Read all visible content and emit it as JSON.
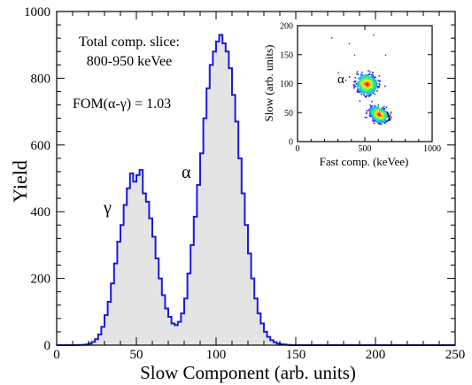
{
  "chart_data": [
    {
      "type": "histogram",
      "xlabel": "Slow Component (arb. units)",
      "ylabel": "Yield",
      "xlim": [
        0,
        250
      ],
      "ylim": [
        0,
        1000
      ],
      "xticks": [
        0,
        50,
        100,
        150,
        200,
        250
      ],
      "yticks": [
        0,
        200,
        400,
        600,
        800,
        1000
      ],
      "xtick_labels": [
        "0",
        "50",
        "100",
        "150",
        "200",
        "250"
      ],
      "ytick_labels": [
        "0",
        "200",
        "400",
        "600",
        "800",
        "1000"
      ],
      "bin_width": 2,
      "fill_color": "#e4e4e4",
      "line_color": "#1a1adf",
      "annotations": {
        "slice_line1": "Total comp. slice:",
        "slice_line2": "800-950 keVee",
        "fom": "FOM(α-γ) = 1.03",
        "gamma_peak": "γ",
        "alpha_peak": "α"
      },
      "bins": [
        {
          "x": 0,
          "y": 0
        },
        {
          "x": 10,
          "y": 0
        },
        {
          "x": 16,
          "y": 1
        },
        {
          "x": 18,
          "y": 2
        },
        {
          "x": 20,
          "y": 5
        },
        {
          "x": 22,
          "y": 10
        },
        {
          "x": 24,
          "y": 18
        },
        {
          "x": 26,
          "y": 32
        },
        {
          "x": 28,
          "y": 55
        },
        {
          "x": 30,
          "y": 90
        },
        {
          "x": 32,
          "y": 130
        },
        {
          "x": 34,
          "y": 185
        },
        {
          "x": 36,
          "y": 245
        },
        {
          "x": 38,
          "y": 310
        },
        {
          "x": 40,
          "y": 360
        },
        {
          "x": 42,
          "y": 420
        },
        {
          "x": 44,
          "y": 470
        },
        {
          "x": 46,
          "y": 515
        },
        {
          "x": 48,
          "y": 490
        },
        {
          "x": 50,
          "y": 510
        },
        {
          "x": 52,
          "y": 525
        },
        {
          "x": 54,
          "y": 455
        },
        {
          "x": 56,
          "y": 430
        },
        {
          "x": 58,
          "y": 380
        },
        {
          "x": 60,
          "y": 325
        },
        {
          "x": 62,
          "y": 260
        },
        {
          "x": 64,
          "y": 200
        },
        {
          "x": 66,
          "y": 150
        },
        {
          "x": 68,
          "y": 110
        },
        {
          "x": 70,
          "y": 85
        },
        {
          "x": 72,
          "y": 65
        },
        {
          "x": 74,
          "y": 60
        },
        {
          "x": 76,
          "y": 70
        },
        {
          "x": 78,
          "y": 95
        },
        {
          "x": 80,
          "y": 140
        },
        {
          "x": 82,
          "y": 215
        },
        {
          "x": 84,
          "y": 300
        },
        {
          "x": 86,
          "y": 385
        },
        {
          "x": 88,
          "y": 480
        },
        {
          "x": 90,
          "y": 575
        },
        {
          "x": 92,
          "y": 680
        },
        {
          "x": 94,
          "y": 770
        },
        {
          "x": 96,
          "y": 840
        },
        {
          "x": 98,
          "y": 880
        },
        {
          "x": 100,
          "y": 910
        },
        {
          "x": 102,
          "y": 930
        },
        {
          "x": 104,
          "y": 905
        },
        {
          "x": 106,
          "y": 880
        },
        {
          "x": 108,
          "y": 830
        },
        {
          "x": 110,
          "y": 750
        },
        {
          "x": 112,
          "y": 670
        },
        {
          "x": 114,
          "y": 560
        },
        {
          "x": 116,
          "y": 455
        },
        {
          "x": 118,
          "y": 360
        },
        {
          "x": 120,
          "y": 275
        },
        {
          "x": 122,
          "y": 200
        },
        {
          "x": 124,
          "y": 140
        },
        {
          "x": 126,
          "y": 95
        },
        {
          "x": 128,
          "y": 65
        },
        {
          "x": 130,
          "y": 40
        },
        {
          "x": 132,
          "y": 25
        },
        {
          "x": 134,
          "y": 15
        },
        {
          "x": 136,
          "y": 9
        },
        {
          "x": 138,
          "y": 5
        },
        {
          "x": 140,
          "y": 3
        },
        {
          "x": 142,
          "y": 2
        },
        {
          "x": 144,
          "y": 1
        },
        {
          "x": 146,
          "y": 0
        },
        {
          "x": 250,
          "y": 0
        }
      ]
    },
    {
      "type": "scatter",
      "title": "",
      "xlabel": "Fast comp. (keVee)",
      "ylabel": "Slow (arb. units)",
      "xlim": [
        0,
        1000
      ],
      "ylim": [
        0,
        200
      ],
      "xticks": [
        0,
        500,
        1000
      ],
      "yticks": [
        0,
        50,
        100,
        150,
        200
      ],
      "xtick_labels": [
        "0",
        "500",
        "1000"
      ],
      "ytick_labels": [
        "0",
        "50",
        "100",
        "150",
        "200"
      ],
      "annotations": {
        "alpha": "α",
        "gamma": "γ"
      },
      "clusters": [
        {
          "label": "α",
          "center": [
            510,
            100
          ],
          "spread": [
            40,
            14
          ],
          "orientation_deg": -60,
          "count": 900
        },
        {
          "label": "γ",
          "center": [
            600,
            48
          ],
          "spread": [
            38,
            10
          ],
          "orientation_deg": -55,
          "count": 700
        }
      ],
      "background_points": [
        [
          250,
          180
        ],
        [
          420,
          150
        ],
        [
          380,
          170
        ],
        [
          560,
          185
        ],
        [
          300,
          120
        ],
        [
          650,
          150
        ]
      ],
      "colormap": [
        "#2a2af5",
        "#1ab0f0",
        "#12e0c0",
        "#6ef04a",
        "#f0f020",
        "#f5a020",
        "#e82020"
      ]
    }
  ]
}
